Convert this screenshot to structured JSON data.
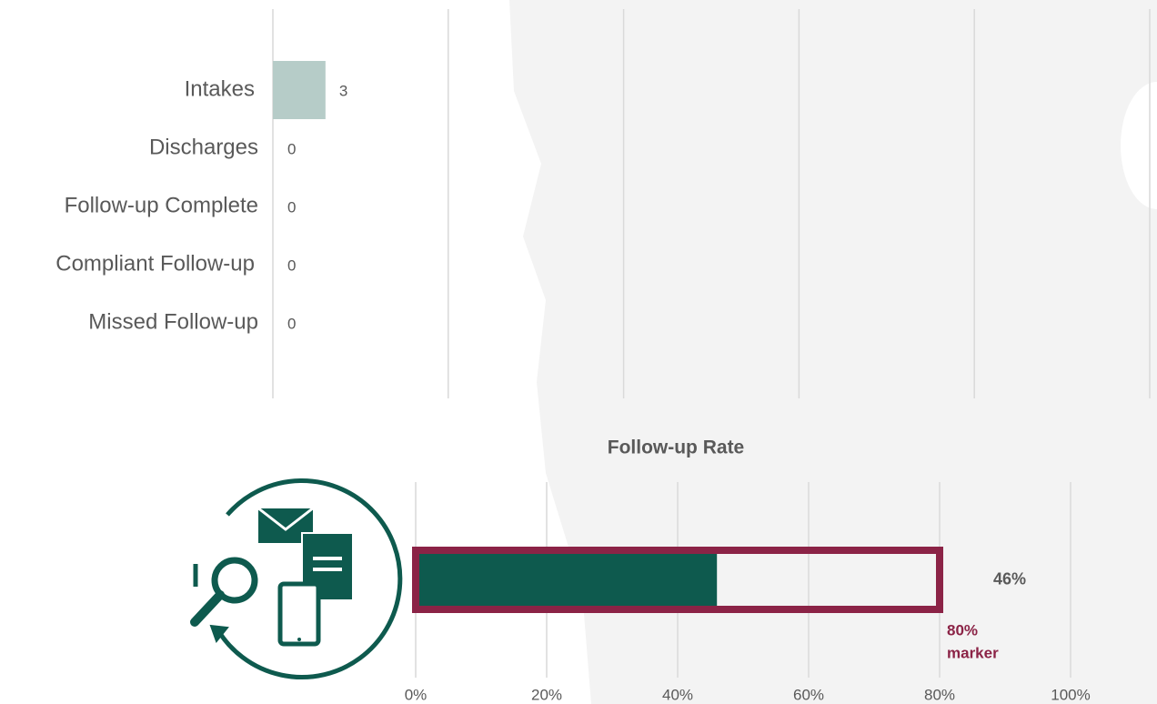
{
  "charts": [
    {
      "type": "bar",
      "orientation": "horizontal",
      "categories": [
        "Intakes",
        "Discharges",
        "Follow-up Complete",
        "Compliant Follow-up",
        "Missed Follow-up"
      ],
      "values": [
        3,
        0,
        0,
        0,
        0
      ],
      "color": "#b6ccc8",
      "xlim": [
        0,
        50
      ],
      "xticks": [
        0,
        10,
        20,
        30,
        40,
        50
      ],
      "grid": true
    },
    {
      "type": "progress",
      "title": "Follow-up Rate",
      "values": [
        46
      ],
      "value_labels": [
        "46%"
      ],
      "color": "#0e5a4e",
      "marker": 80,
      "marker_label": [
        "80%",
        "marker"
      ],
      "marker_color": "#8b2346",
      "xlim": [
        0,
        100
      ],
      "xticks": [
        {
          "value": 0,
          "label": "0%"
        },
        {
          "value": 20,
          "label": "20%"
        },
        {
          "value": 40,
          "label": "40%"
        },
        {
          "value": 60,
          "label": "60%"
        },
        {
          "value": 80,
          "label": "80%"
        },
        {
          "value": 100,
          "label": "100%"
        }
      ],
      "grid": true
    }
  ]
}
